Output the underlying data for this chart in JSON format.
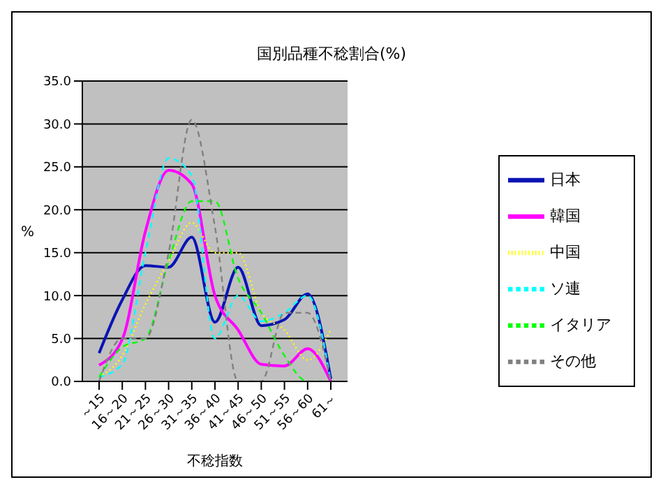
{
  "chart_data": {
    "type": "line",
    "title": "国別品種不稔割合(%)",
    "xlabel": "不稔指数",
    "ylabel": "%",
    "categories": [
      "～15",
      "16～20",
      "21～25",
      "26～30",
      "31～35",
      "36～40",
      "41～45",
      "46～50",
      "51～55",
      "56～60",
      "61～"
    ],
    "series": [
      {
        "name": "日本",
        "color": "#0a14b4",
        "line_style": "solid",
        "values": [
          3.3,
          9.5,
          13.5,
          13.3,
          16.8,
          6.9,
          13.3,
          6.5,
          7.2,
          10.2,
          0.3
        ]
      },
      {
        "name": "韓国",
        "color": "#ff00ff",
        "line_style": "solid",
        "values": [
          1.9,
          4.9,
          17.5,
          24.6,
          23.0,
          10.0,
          6.0,
          2.0,
          1.8,
          3.8,
          0.0
        ]
      },
      {
        "name": "中国",
        "color": "#ffff00",
        "line_style": "dotted",
        "values": [
          0.5,
          3.0,
          9.0,
          14.0,
          18.5,
          15.0,
          15.0,
          8.0,
          6.0,
          2.5,
          6.0
        ]
      },
      {
        "name": "ソ連",
        "color": "#00ffff",
        "line_style": "dashed",
        "values": [
          0.5,
          2.0,
          15.0,
          26.0,
          24.0,
          5.0,
          10.0,
          7.0,
          8.0,
          10.0,
          0.0
        ]
      },
      {
        "name": "イタリア",
        "color": "#00ff00",
        "line_style": "dashed",
        "values": [
          0.5,
          4.0,
          5.0,
          14.0,
          21.0,
          21.0,
          12.0,
          8.0,
          3.0,
          0.0,
          0.0
        ]
      },
      {
        "name": "その他",
        "color": "#808080",
        "line_style": "dashed",
        "values": [
          0.0,
          5.0,
          5.0,
          15.0,
          30.5,
          18.0,
          0.0,
          0.0,
          8.0,
          8.0,
          0.0
        ]
      }
    ],
    "ylim": [
      0,
      35
    ],
    "yticks": [
      {
        "value": 0,
        "label": "0.0"
      },
      {
        "value": 5,
        "label": "5.0"
      },
      {
        "value": 10,
        "label": "10.0"
      },
      {
        "value": 15,
        "label": "15.0"
      },
      {
        "value": 20,
        "label": "20.0"
      },
      {
        "value": 25,
        "label": "25.0"
      },
      {
        "value": 30,
        "label": "30.0"
      },
      {
        "value": 35,
        "label": "35.0"
      }
    ],
    "grid": "y",
    "legend": "right",
    "marker": "none"
  }
}
